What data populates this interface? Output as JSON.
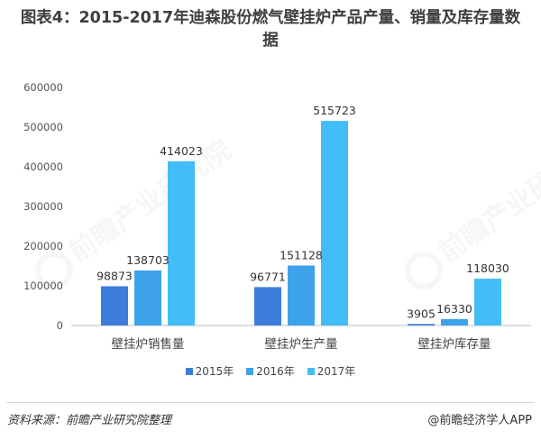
{
  "title": "图表4：2015-2017年迪森股份燃气壁挂炉产品产量、销量及库存量数据",
  "chart_data": {
    "type": "bar",
    "categories": [
      "壁挂炉销售量",
      "壁挂炉生产量",
      "壁挂炉库存量"
    ],
    "series": [
      {
        "name": "2015年",
        "color": "#3c7ddc",
        "values": [
          98873,
          96771,
          3905
        ]
      },
      {
        "name": "2016年",
        "color": "#3ea2ea",
        "values": [
          138703,
          151128,
          16330
        ]
      },
      {
        "name": "2017年",
        "color": "#42bdf7",
        "values": [
          414023,
          515723,
          118030
        ]
      }
    ],
    "ylim": [
      0,
      600000
    ],
    "yticks": [
      0,
      100000,
      200000,
      300000,
      400000,
      500000,
      600000
    ],
    "grid": false,
    "legend": "bottom"
  },
  "footer": {
    "source": "资料来源：前瞻产业研究院整理",
    "credit": "@前瞻经济学人APP"
  },
  "watermark": {
    "text": "前瞻产业研究院"
  }
}
